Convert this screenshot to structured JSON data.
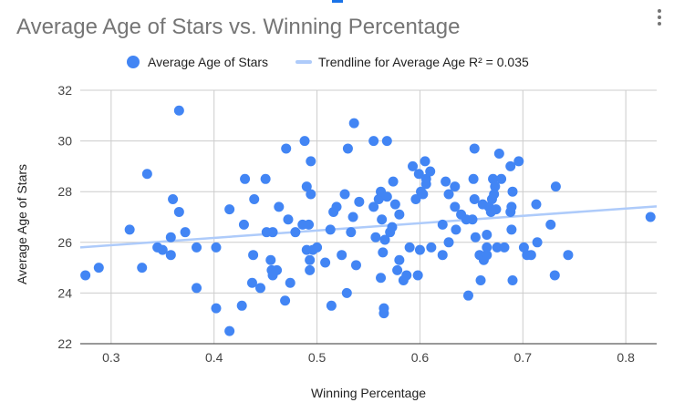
{
  "chart_data": {
    "type": "scatter",
    "title": "Average Age of Stars vs. Winning Percentage",
    "xlabel": "Winning Percentage",
    "ylabel": "Average Age of Stars",
    "xlim": [
      0.27,
      0.83
    ],
    "ylim": [
      22,
      32
    ],
    "xticks": [
      0.3,
      0.4,
      0.5,
      0.6,
      0.7,
      0.8
    ],
    "xtick_labels": [
      "0.3",
      "0.4",
      "0.5",
      "0.6",
      "0.7",
      "0.8"
    ],
    "yticks": [
      22,
      24,
      26,
      28,
      30,
      32
    ],
    "ytick_labels": [
      "22",
      "24",
      "26",
      "28",
      "30",
      "32"
    ],
    "legend_position": "top",
    "grid": true,
    "series": [
      {
        "name": "Average Age of Stars",
        "color": "#4285f4",
        "points": [
          [
            0.275,
            24.7
          ],
          [
            0.288,
            25.0
          ],
          [
            0.318,
            26.5
          ],
          [
            0.33,
            25.0
          ],
          [
            0.335,
            28.7
          ],
          [
            0.345,
            25.8
          ],
          [
            0.35,
            25.7
          ],
          [
            0.358,
            25.5
          ],
          [
            0.358,
            26.2
          ],
          [
            0.36,
            27.7
          ],
          [
            0.366,
            27.2
          ],
          [
            0.366,
            31.2
          ],
          [
            0.372,
            26.4
          ],
          [
            0.383,
            25.8
          ],
          [
            0.383,
            24.2
          ],
          [
            0.402,
            25.8
          ],
          [
            0.402,
            23.4
          ],
          [
            0.415,
            22.5
          ],
          [
            0.415,
            27.3
          ],
          [
            0.427,
            23.5
          ],
          [
            0.429,
            26.7
          ],
          [
            0.43,
            28.5
          ],
          [
            0.437,
            24.4
          ],
          [
            0.438,
            25.5
          ],
          [
            0.439,
            27.7
          ],
          [
            0.445,
            24.2
          ],
          [
            0.45,
            28.5
          ],
          [
            0.451,
            26.4
          ],
          [
            0.455,
            25.3
          ],
          [
            0.456,
            24.9
          ],
          [
            0.457,
            24.7
          ],
          [
            0.457,
            26.4
          ],
          [
            0.461,
            24.9
          ],
          [
            0.463,
            27.4
          ],
          [
            0.469,
            23.7
          ],
          [
            0.47,
            29.7
          ],
          [
            0.472,
            26.9
          ],
          [
            0.474,
            24.4
          ],
          [
            0.479,
            26.4
          ],
          [
            0.486,
            26.7
          ],
          [
            0.488,
            30.0
          ],
          [
            0.49,
            25.7
          ],
          [
            0.49,
            28.2
          ],
          [
            0.492,
            26.7
          ],
          [
            0.493,
            25.3
          ],
          [
            0.493,
            24.9
          ],
          [
            0.494,
            27.9
          ],
          [
            0.494,
            29.2
          ],
          [
            0.496,
            25.7
          ],
          [
            0.5,
            25.8
          ],
          [
            0.508,
            25.2
          ],
          [
            0.513,
            26.5
          ],
          [
            0.514,
            23.5
          ],
          [
            0.516,
            27.2
          ],
          [
            0.519,
            27.4
          ],
          [
            0.524,
            25.5
          ],
          [
            0.527,
            27.9
          ],
          [
            0.529,
            24.0
          ],
          [
            0.53,
            29.7
          ],
          [
            0.533,
            26.4
          ],
          [
            0.535,
            27.0
          ],
          [
            0.536,
            30.7
          ],
          [
            0.538,
            25.1
          ],
          [
            0.541,
            27.6
          ],
          [
            0.555,
            30.0
          ],
          [
            0.555,
            27.4
          ],
          [
            0.557,
            26.2
          ],
          [
            0.56,
            27.7
          ],
          [
            0.562,
            28.0
          ],
          [
            0.562,
            24.6
          ],
          [
            0.563,
            26.9
          ],
          [
            0.564,
            25.6
          ],
          [
            0.565,
            23.2
          ],
          [
            0.565,
            23.4
          ],
          [
            0.566,
            26.1
          ],
          [
            0.568,
            30.0
          ],
          [
            0.568,
            27.8
          ],
          [
            0.571,
            26.4
          ],
          [
            0.573,
            26.6
          ],
          [
            0.574,
            28.4
          ],
          [
            0.576,
            27.5
          ],
          [
            0.578,
            24.9
          ],
          [
            0.58,
            27.1
          ],
          [
            0.58,
            25.3
          ],
          [
            0.584,
            24.5
          ],
          [
            0.587,
            24.7
          ],
          [
            0.59,
            25.8
          ],
          [
            0.593,
            29.0
          ],
          [
            0.596,
            27.7
          ],
          [
            0.598,
            24.7
          ],
          [
            0.599,
            28.7
          ],
          [
            0.6,
            25.7
          ],
          [
            0.601,
            28.0
          ],
          [
            0.603,
            27.9
          ],
          [
            0.605,
            29.2
          ],
          [
            0.606,
            28.5
          ],
          [
            0.606,
            28.3
          ],
          [
            0.61,
            28.8
          ],
          [
            0.611,
            25.8
          ],
          [
            0.622,
            26.7
          ],
          [
            0.622,
            25.5
          ],
          [
            0.625,
            28.4
          ],
          [
            0.628,
            27.9
          ],
          [
            0.628,
            26.0
          ],
          [
            0.634,
            27.4
          ],
          [
            0.634,
            28.2
          ],
          [
            0.635,
            26.5
          ],
          [
            0.64,
            27.1
          ],
          [
            0.645,
            26.9
          ],
          [
            0.647,
            23.9
          ],
          [
            0.651,
            26.9
          ],
          [
            0.652,
            28.5
          ],
          [
            0.653,
            29.7
          ],
          [
            0.653,
            27.7
          ],
          [
            0.654,
            26.2
          ],
          [
            0.658,
            25.5
          ],
          [
            0.659,
            24.5
          ],
          [
            0.661,
            27.5
          ],
          [
            0.662,
            25.3
          ],
          [
            0.665,
            25.8
          ],
          [
            0.665,
            25.5
          ],
          [
            0.665,
            26.3
          ],
          [
            0.667,
            27.4
          ],
          [
            0.669,
            27.2
          ],
          [
            0.67,
            27.7
          ],
          [
            0.671,
            28.5
          ],
          [
            0.672,
            27.9
          ],
          [
            0.673,
            28.2
          ],
          [
            0.674,
            27.3
          ],
          [
            0.675,
            25.8
          ],
          [
            0.677,
            29.5
          ],
          [
            0.679,
            28.5
          ],
          [
            0.682,
            25.8
          ],
          [
            0.688,
            27.2
          ],
          [
            0.688,
            29.0
          ],
          [
            0.689,
            27.4
          ],
          [
            0.689,
            26.5
          ],
          [
            0.69,
            24.5
          ],
          [
            0.69,
            28.0
          ],
          [
            0.696,
            29.2
          ],
          [
            0.701,
            25.8
          ],
          [
            0.704,
            25.5
          ],
          [
            0.708,
            25.5
          ],
          [
            0.713,
            27.5
          ],
          [
            0.714,
            26.0
          ],
          [
            0.727,
            26.7
          ],
          [
            0.731,
            24.7
          ],
          [
            0.732,
            28.2
          ],
          [
            0.744,
            25.5
          ],
          [
            0.824,
            27.0
          ]
        ]
      },
      {
        "name": "Trendline for Average Age R² = 0.035",
        "color": "#aecbfa",
        "kind": "trendline",
        "points": [
          [
            0.27,
            25.8
          ],
          [
            0.83,
            27.42
          ]
        ]
      }
    ]
  }
}
